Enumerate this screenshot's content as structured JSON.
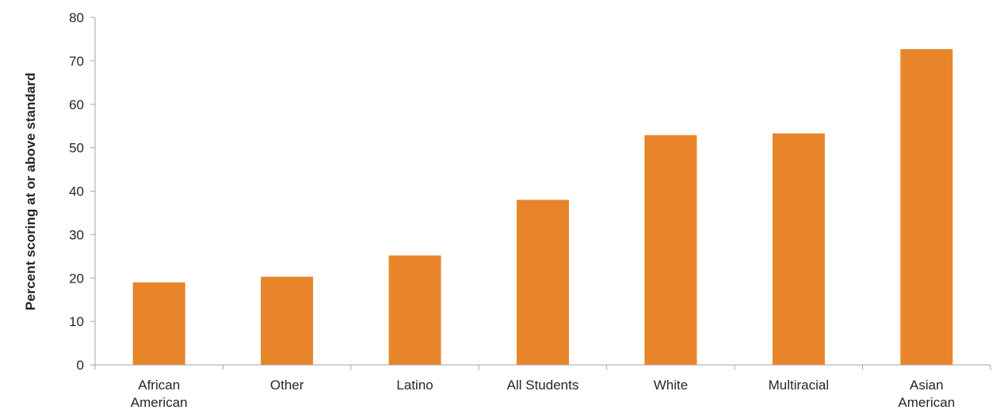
{
  "chart_data": {
    "type": "bar",
    "title": "",
    "xlabel": "",
    "ylabel": "Percent scoring at or above standard",
    "categories": [
      [
        "African",
        "American"
      ],
      [
        "Other"
      ],
      [
        "Latino"
      ],
      [
        "All Students"
      ],
      [
        "White"
      ],
      [
        "Multiracial"
      ],
      [
        "Asian",
        "American"
      ]
    ],
    "values": [
      19,
      20.3,
      25.2,
      38,
      52.9,
      53.3,
      72.7
    ],
    "ylim": [
      0,
      80
    ],
    "yticks": [
      0,
      10,
      20,
      30,
      40,
      50,
      60,
      70,
      80
    ],
    "grid": false,
    "legend": "none",
    "bar_color": "#E8852A",
    "axis_color": "#a6a6a6"
  }
}
